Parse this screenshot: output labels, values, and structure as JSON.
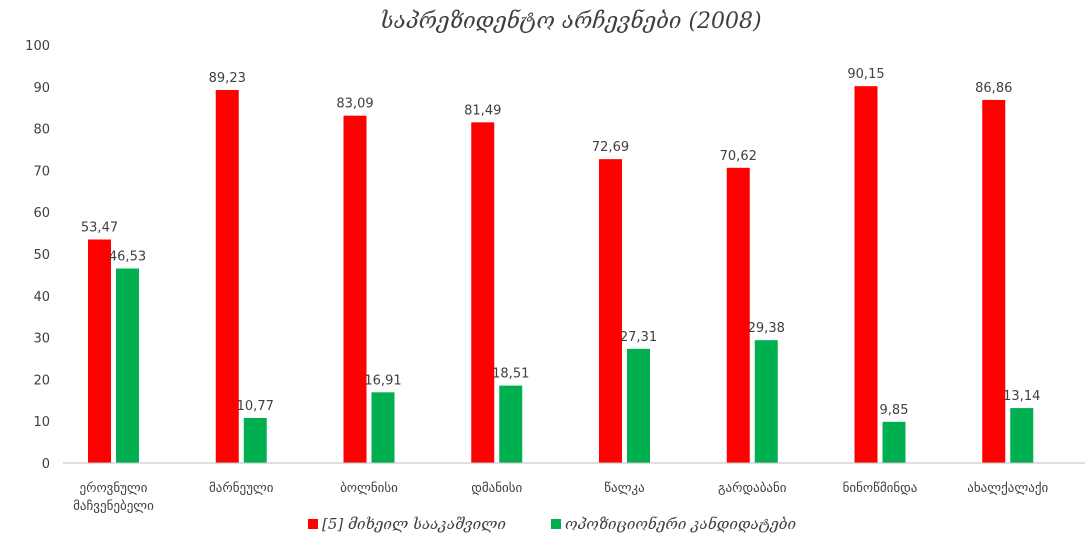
{
  "chart_data": {
    "type": "bar",
    "title": "საპრეზიდენტო არჩევნები (2008)",
    "xlabel": "",
    "ylabel": "",
    "ylim": [
      0,
      100
    ],
    "yticks": [
      0,
      10,
      20,
      30,
      40,
      50,
      60,
      70,
      80,
      90,
      100
    ],
    "grid": false,
    "legend_position": "bottom",
    "categories": [
      [
        "ეროვნული",
        "მაჩვენებელი"
      ],
      [
        "მარნეული"
      ],
      [
        "ბოლნისი"
      ],
      [
        "დმანისი"
      ],
      [
        "წალკა"
      ],
      [
        "გარდაბანი"
      ],
      [
        "ნინოწმინდა"
      ],
      [
        "ახალქალაქი"
      ]
    ],
    "series": [
      {
        "name": "[5] მიხეილ სააკაშვილი",
        "color": "#ff0000",
        "values": [
          53.47,
          89.23,
          83.09,
          81.49,
          72.69,
          70.62,
          90.15,
          86.86
        ],
        "labels": [
          "53,47",
          "89,23",
          "83,09",
          "81,49",
          "72,69",
          "70,62",
          "90,15",
          "86,86"
        ]
      },
      {
        "name": "ოპოზიციონერი კანდიდატები",
        "color": "#00b050",
        "values": [
          46.53,
          10.77,
          16.91,
          18.51,
          27.31,
          29.38,
          9.85,
          13.14
        ],
        "labels": [
          "46,53",
          "10,77",
          "16,91",
          "18,51",
          "27,31",
          "29,38",
          "9,85",
          "13,14"
        ]
      }
    ]
  }
}
